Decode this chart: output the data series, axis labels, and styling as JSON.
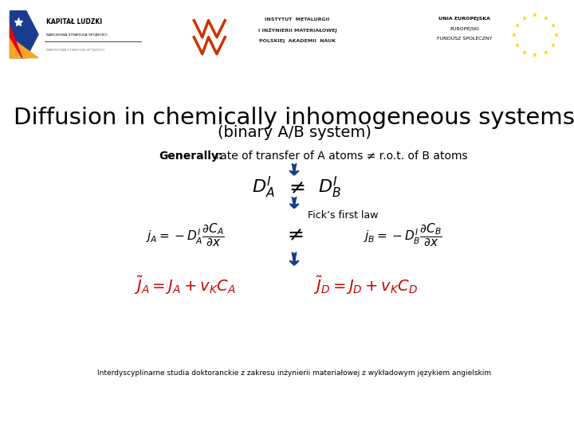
{
  "title_line1": "Diffusion in chemically inhomogeneous systems",
  "title_line2": "(binary A/B system)",
  "generally_bold": "Generally:",
  "generally_rest": " rate of transfer of A atoms ≠ r.o.t. of B atoms",
  "ficks_label": "Fick’s first law",
  "footer": "Interdyscyplinarne studia doktoranckie z zakresu inżynierii materiałowej z wykładowym językiem angielskim",
  "arrow_color": "#1a3a8a",
  "red_color": "#cc0000",
  "bg_color": "#ffffff",
  "title_fontsize": 21,
  "subtitle_fontsize": 14,
  "generally_fontsize": 10,
  "footer_fontsize": 6.5
}
